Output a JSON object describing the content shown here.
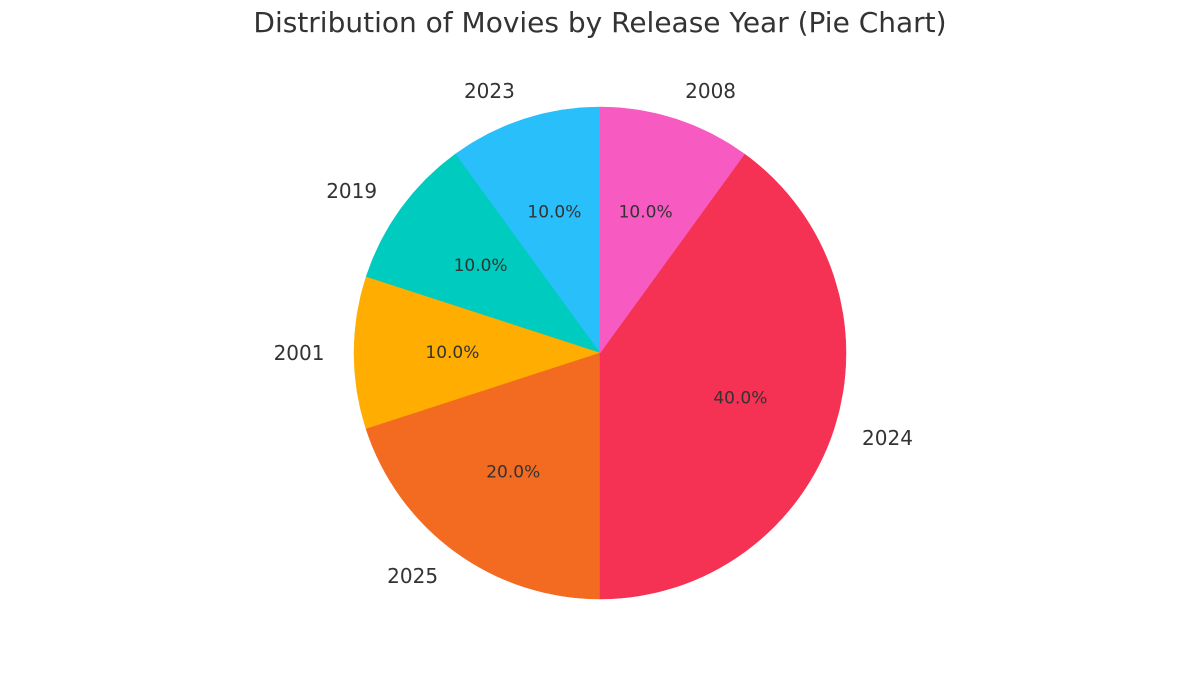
{
  "chart_data": {
    "type": "pie",
    "title": "Distribution of Movies by Release Year (Pie Chart)",
    "start_angle_deg": 90,
    "direction": "counterclockwise",
    "slices": [
      {
        "label": "2023",
        "value": 10.0,
        "pct_label": "10.0%",
        "color": "#29bffb"
      },
      {
        "label": "2019",
        "value": 10.0,
        "pct_label": "10.0%",
        "color": "#00cbbf"
      },
      {
        "label": "2001",
        "value": 10.0,
        "pct_label": "10.0%",
        "color": "#ffad00"
      },
      {
        "label": "2025",
        "value": 20.0,
        "pct_label": "20.0%",
        "color": "#f26b21"
      },
      {
        "label": "2024",
        "value": 40.0,
        "pct_label": "40.0%",
        "color": "#f53154"
      },
      {
        "label": "2008",
        "value": 10.0,
        "pct_label": "10.0%",
        "color": "#f75bc2"
      }
    ]
  }
}
